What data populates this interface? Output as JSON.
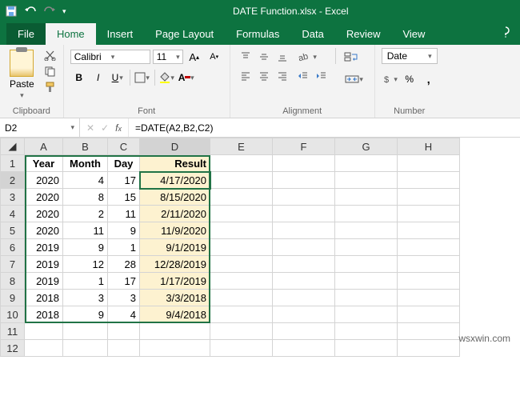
{
  "app": {
    "title": "DATE Function.xlsx - Excel"
  },
  "tabs": [
    "File",
    "Home",
    "Insert",
    "Page Layout",
    "Formulas",
    "Data",
    "Review",
    "View"
  ],
  "active_tab": "Home",
  "clipboard": {
    "paste_label": "Paste",
    "group_label": "Clipboard"
  },
  "font": {
    "name": "Calibri",
    "size": "11",
    "group_label": "Font"
  },
  "alignment": {
    "group_label": "Alignment"
  },
  "number": {
    "format": "Date",
    "group_label": "Number"
  },
  "namebox": "D2",
  "formula": "=DATE(A2,B2,C2)",
  "columns": [
    "A",
    "B",
    "C",
    "D",
    "E",
    "F",
    "G",
    "H"
  ],
  "headers": {
    "A": "Year",
    "B": "Month",
    "C": "Day",
    "D": "Result"
  },
  "rows": [
    {
      "n": 2,
      "A": "2020",
      "B": "4",
      "C": "17",
      "D": "4/17/2020"
    },
    {
      "n": 3,
      "A": "2020",
      "B": "8",
      "C": "15",
      "D": "8/15/2020"
    },
    {
      "n": 4,
      "A": "2020",
      "B": "2",
      "C": "11",
      "D": "2/11/2020"
    },
    {
      "n": 5,
      "A": "2020",
      "B": "11",
      "C": "9",
      "D": "11/9/2020"
    },
    {
      "n": 6,
      "A": "2019",
      "B": "9",
      "C": "1",
      "D": "9/1/2019"
    },
    {
      "n": 7,
      "A": "2019",
      "B": "12",
      "C": "28",
      "D": "12/28/2019"
    },
    {
      "n": 8,
      "A": "2019",
      "B": "1",
      "C": "17",
      "D": "1/17/2019"
    },
    {
      "n": 9,
      "A": "2018",
      "B": "3",
      "C": "3",
      "D": "3/3/2018"
    },
    {
      "n": 10,
      "A": "2018",
      "B": "9",
      "C": "4",
      "D": "9/4/2018"
    }
  ],
  "blank_rows": [
    11,
    12
  ],
  "active_cell": "D2",
  "colors": {
    "ribbon_green": "#0d7340",
    "result_fill": "#fdf2d0",
    "selection_border": "#217346",
    "grid_border": "#d4d4d4"
  },
  "watermark": "wsxwin.com"
}
